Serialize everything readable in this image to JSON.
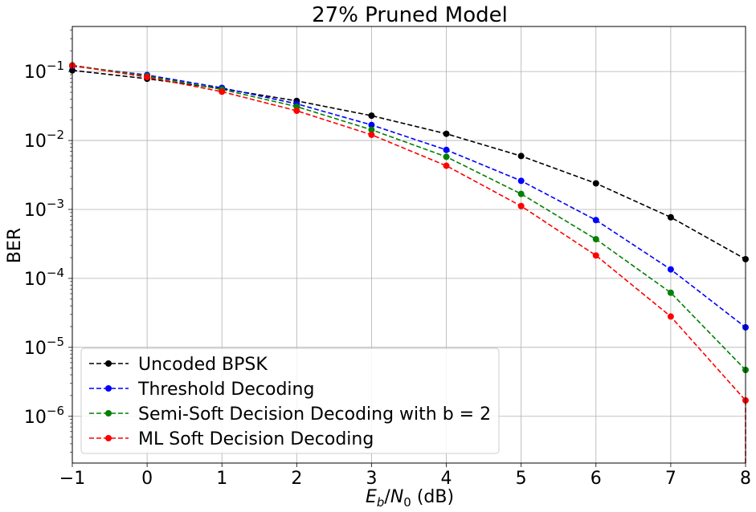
{
  "chart_data": {
    "type": "line",
    "title": "27% Pruned Model",
    "xlabel": {
      "base": "E",
      "base_sub": "b",
      "sep": "/",
      "den": "N",
      "den_sub": "0",
      "unit": " (dB)"
    },
    "ylabel": "BER",
    "xlim": [
      -1,
      8
    ],
    "ylim": [
      2.1e-07,
      0.45
    ],
    "yscale": "log",
    "grid": true,
    "legend_position": "lower-left",
    "x_ticks": [
      -1,
      0,
      1,
      2,
      3,
      4,
      5,
      6,
      7,
      8
    ],
    "x_tick_labels": [
      "−1",
      "0",
      "1",
      "2",
      "3",
      "4",
      "5",
      "6",
      "7",
      "8"
    ],
    "y_ticks": [
      {
        "value": 0.1,
        "base": "10",
        "exp": "−1"
      },
      {
        "value": 0.01,
        "base": "10",
        "exp": "−2"
      },
      {
        "value": 0.001,
        "base": "10",
        "exp": "−3"
      },
      {
        "value": 0.0001,
        "base": "10",
        "exp": "−4"
      },
      {
        "value": 1e-05,
        "base": "10",
        "exp": "−5"
      },
      {
        "value": 1e-06,
        "base": "10",
        "exp": "−6"
      }
    ],
    "x": [
      -1,
      0,
      1,
      2,
      3,
      4,
      5,
      6,
      7,
      8
    ],
    "series": [
      {
        "name": "Uncoded BPSK",
        "color": "#000000",
        "values": [
          0.104,
          0.0786,
          0.0563,
          0.0375,
          0.0229,
          0.0125,
          0.00595,
          0.00239,
          0.00077,
          0.00019
        ]
      },
      {
        "name": "Threshold Decoding",
        "color": "#0000ff",
        "values": [
          0.12,
          0.089,
          0.058,
          0.034,
          0.0168,
          0.0073,
          0.0026,
          0.0007,
          0.000135,
          1.95e-05
        ]
      },
      {
        "name": "Semi-Soft Decision Decoding with b = 2",
        "color": "#008000",
        "values": [
          0.123,
          0.086,
          0.055,
          0.031,
          0.0143,
          0.0058,
          0.00168,
          0.00037,
          6.2e-05,
          4.7e-06
        ]
      },
      {
        "name": "ML Soft Decision Decoding",
        "color": "#ff0000",
        "values": [
          0.122,
          0.083,
          0.051,
          0.027,
          0.0121,
          0.0043,
          0.00112,
          0.000215,
          2.8e-05,
          1.7e-06
        ]
      }
    ]
  }
}
